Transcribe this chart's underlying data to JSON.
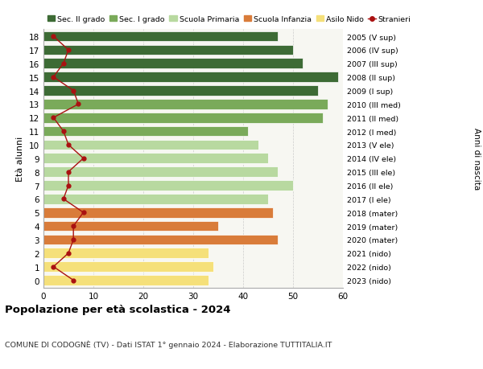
{
  "ages": [
    18,
    17,
    16,
    15,
    14,
    13,
    12,
    11,
    10,
    9,
    8,
    7,
    6,
    5,
    4,
    3,
    2,
    1,
    0
  ],
  "right_labels": [
    "2005 (V sup)",
    "2006 (IV sup)",
    "2007 (III sup)",
    "2008 (II sup)",
    "2009 (I sup)",
    "2010 (III med)",
    "2011 (II med)",
    "2012 (I med)",
    "2013 (V ele)",
    "2014 (IV ele)",
    "2015 (III ele)",
    "2016 (II ele)",
    "2017 (I ele)",
    "2018 (mater)",
    "2019 (mater)",
    "2020 (mater)",
    "2021 (nido)",
    "2022 (nido)",
    "2023 (nido)"
  ],
  "bar_values": [
    47,
    50,
    52,
    59,
    55,
    57,
    56,
    41,
    43,
    45,
    47,
    50,
    45,
    46,
    35,
    47,
    33,
    34,
    33
  ],
  "bar_colors": [
    "#3d6b35",
    "#3d6b35",
    "#3d6b35",
    "#3d6b35",
    "#3d6b35",
    "#7aaa5a",
    "#7aaa5a",
    "#7aaa5a",
    "#b8d9a0",
    "#b8d9a0",
    "#b8d9a0",
    "#b8d9a0",
    "#b8d9a0",
    "#d97c3a",
    "#d97c3a",
    "#d97c3a",
    "#f5e07a",
    "#f5e07a",
    "#f5e07a"
  ],
  "stranieri_values": [
    2,
    5,
    4,
    2,
    6,
    7,
    2,
    4,
    5,
    8,
    5,
    5,
    4,
    8,
    6,
    6,
    5,
    2,
    6
  ],
  "stranieri_color": "#aa1111",
  "legend_entries": [
    {
      "label": "Sec. II grado",
      "color": "#3d6b35"
    },
    {
      "label": "Sec. I grado",
      "color": "#7aaa5a"
    },
    {
      "label": "Scuola Primaria",
      "color": "#b8d9a0"
    },
    {
      "label": "Scuola Infanzia",
      "color": "#d97c3a"
    },
    {
      "label": "Asilo Nido",
      "color": "#f5e07a"
    },
    {
      "label": "Stranieri",
      "color": "#aa1111"
    }
  ],
  "title": "Popolazione per età scolastica - 2024",
  "subtitle": "COMUNE DI CODOGNÈ (TV) - Dati ISTAT 1° gennaio 2024 - Elaborazione TUTTITALIA.IT",
  "ylabel_left": "Età alunni",
  "ylabel_right": "Anni di nascita",
  "xlim": [
    0,
    60
  ],
  "background_color": "#ffffff",
  "plot_background": "#f7f7f2",
  "bar_height": 0.75,
  "grid_color": "#cccccc"
}
